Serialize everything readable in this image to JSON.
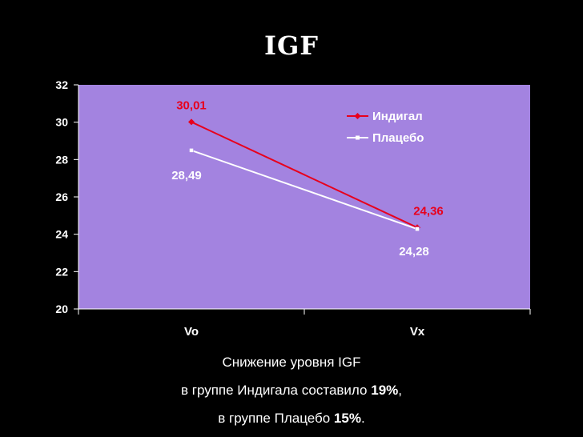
{
  "title": "IGF",
  "chart_data": {
    "type": "line",
    "categories": [
      "Vo",
      "Vx"
    ],
    "ylim": [
      20,
      32
    ],
    "yticks": [
      20,
      22,
      24,
      26,
      28,
      30,
      32
    ],
    "ytick_labels": [
      "20",
      "22",
      "24",
      "26",
      "28",
      "30",
      "32"
    ],
    "grid": false,
    "legend": "top-right",
    "plot_bg": "#a383e0",
    "series": [
      {
        "name": "Индигал",
        "values": [
          30.01,
          24.36
        ],
        "labels": [
          "30,01",
          "24,36"
        ],
        "color": "#e8001c"
      },
      {
        "name": "Плацебо",
        "values": [
          28.49,
          24.28
        ],
        "labels": [
          "28,49",
          "24,28"
        ],
        "color": "#ffffff"
      }
    ]
  },
  "caption": {
    "line1": "Снижение уровня IGF",
    "line2_text": "в группе Индигала составило ",
    "line2_pct": "19%",
    "line2_end": ",",
    "line3_text": "в группе Плацебо ",
    "line3_pct": "15%",
    "line3_end": "."
  }
}
